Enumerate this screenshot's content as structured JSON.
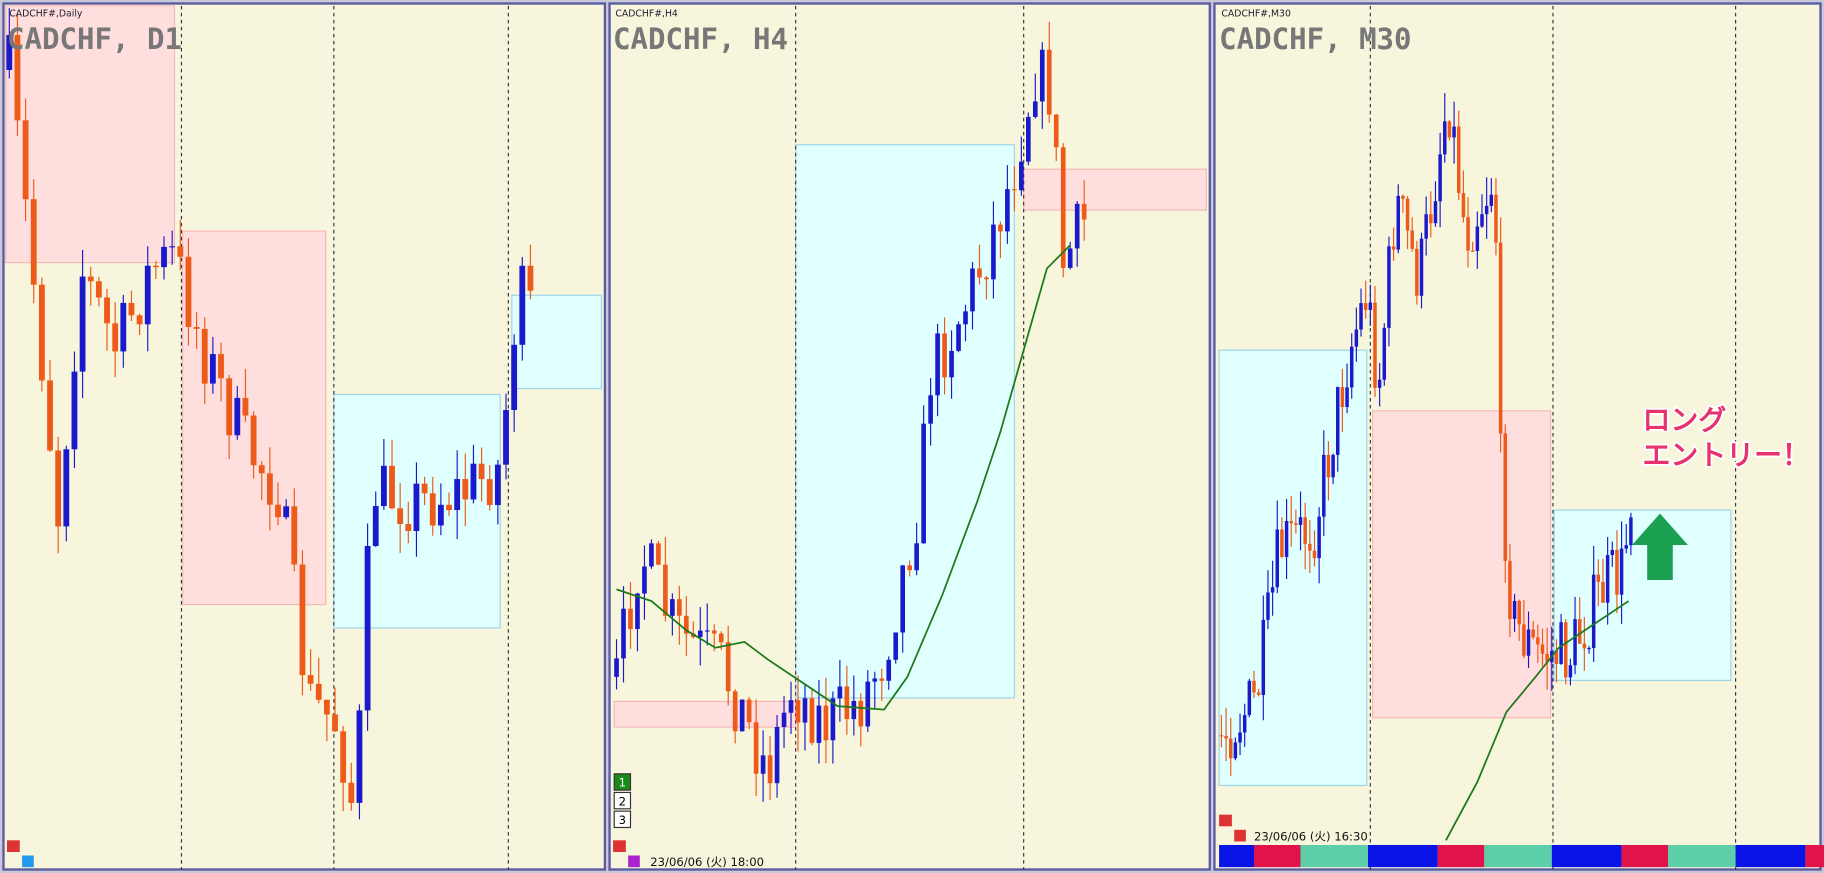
{
  "panels": [
    {
      "symbol": "CADCHF#,Daily",
      "title": "CADCHF, D1"
    },
    {
      "symbol": "CADCHF#,H4",
      "title": "CADCHF, H4",
      "buttons": [
        "1",
        "2",
        "3"
      ],
      "timestamp": "23/06/06 (火) 18:00"
    },
    {
      "symbol": "CADCHF#,M30",
      "title": "CADCHF, M30",
      "timestamp": "23/06/06 (火) 16:30"
    }
  ],
  "annotation": {
    "line1": "ロング",
    "line2": "エントリー！"
  }
}
